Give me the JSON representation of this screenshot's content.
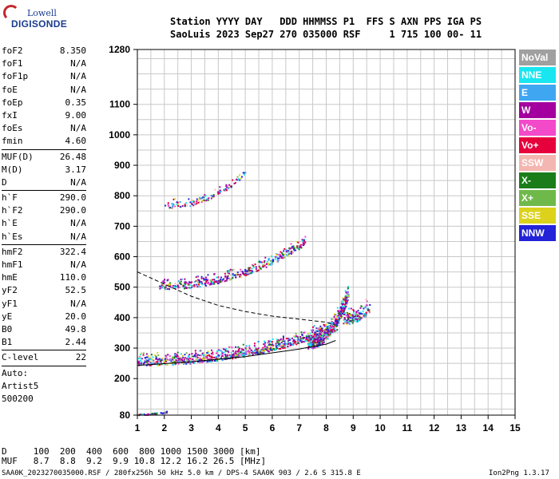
{
  "logo": {
    "line1": "Lowell",
    "line2": "DIGISONDE"
  },
  "header": {
    "labels": "Station YYYY DAY   DDD HHMMSS P1  FFS S AXN PPS IGA PS",
    "values": "SaoLuis 2023 Sep27 270 035000 RSF     1 715 100 00- 11"
  },
  "params": [
    {
      "k": "foF2",
      "v": "8.350"
    },
    {
      "k": "foF1",
      "v": "N/A"
    },
    {
      "k": "foF1p",
      "v": "N/A"
    },
    {
      "k": "foE",
      "v": "N/A"
    },
    {
      "k": "foEp",
      "v": "0.35"
    },
    {
      "k": "fxI",
      "v": "9.00"
    },
    {
      "k": "foEs",
      "v": "N/A"
    },
    {
      "k": "fmin",
      "v": "4.60"
    },
    {
      "sep": true
    },
    {
      "k": "MUF(D)",
      "v": "26.48"
    },
    {
      "k": "M(D)",
      "v": "3.17"
    },
    {
      "k": "D",
      "v": "N/A"
    },
    {
      "sep": true
    },
    {
      "k": "h`F",
      "v": "290.0"
    },
    {
      "k": "h`F2",
      "v": "290.0"
    },
    {
      "k": "h`E",
      "v": "N/A"
    },
    {
      "k": "h`Es",
      "v": "N/A"
    },
    {
      "sep": true
    },
    {
      "k": "hmF2",
      "v": "322.4"
    },
    {
      "k": "hmF1",
      "v": "N/A"
    },
    {
      "k": "hmE",
      "v": "110.0"
    },
    {
      "k": "yF2",
      "v": "52.5"
    },
    {
      "k": "yF1",
      "v": "N/A"
    },
    {
      "k": "yE",
      "v": "20.0"
    },
    {
      "k": "B0",
      "v": "49.8"
    },
    {
      "k": "B1",
      "v": "2.44"
    },
    {
      "sep": true
    },
    {
      "k": "C-level",
      "v": "22"
    },
    {
      "sep": true
    }
  ],
  "artist": {
    "l1": "Auto:",
    "l2": "Artist5",
    "l3": "500200"
  },
  "legend": [
    {
      "label": "NoVal",
      "color": "#a0a0a0"
    },
    {
      "label": "NNE",
      "color": "#19e6f0"
    },
    {
      "label": "E",
      "color": "#3fa6f2"
    },
    {
      "label": "W",
      "color": "#a3009f"
    },
    {
      "label": "Vo-",
      "color": "#f24ac8"
    },
    {
      "label": "Vo+",
      "color": "#e6003c"
    },
    {
      "label": "SSW",
      "color": "#f4b6b0"
    },
    {
      "label": "X-",
      "color": "#1a7d1a"
    },
    {
      "label": "X+",
      "color": "#6fb94a"
    },
    {
      "label": "SSE",
      "color": "#dcd21c"
    },
    {
      "label": "NNW",
      "color": "#2323d8"
    }
  ],
  "footer": {
    "row1": "D     100  200  400  600  800 1000 1500 3000 [km]",
    "row2": "MUF   8.7  8.8  9.2  9.9 10.8 12.2 16.2 26.5 [MHz]"
  },
  "footnote": "SAA0K_2023270035000.RSF / 280fx256h 50 kHz 5.0 km / DPS-4 SAA0K 903 / 2.6 S 315.8 E",
  "version": "Ion2Png 1.3.17",
  "chart_data": {
    "type": "scatter",
    "xlim": [
      1,
      15
    ],
    "ylim": [
      80,
      1280
    ],
    "x_ticks": [
      1,
      2,
      3,
      4,
      5,
      6,
      7,
      8,
      9,
      10,
      11,
      12,
      13,
      14,
      15
    ],
    "y_ticks": [
      80,
      200,
      300,
      400,
      500,
      600,
      700,
      800,
      900,
      1000,
      1100,
      1280
    ],
    "grid": true,
    "clusters": [
      {
        "name": "F2 O-trace",
        "fx": [
          1.0,
          8.4
        ],
        "h0": 245,
        "h1": 360,
        "spread": 45,
        "n": 900
      },
      {
        "name": "F2 spread",
        "fx": [
          7.3,
          8.8
        ],
        "h0": 300,
        "h1": 460,
        "spread": 60,
        "n": 450
      },
      {
        "name": "X-trace",
        "fx": [
          8.6,
          9.6
        ],
        "h0": 380,
        "h1": 420,
        "spread": 55,
        "n": 140
      },
      {
        "name": "2nd hop",
        "fx": [
          1.8,
          7.2
        ],
        "h0": 495,
        "h1": 640,
        "spread": 40,
        "n": 420
      },
      {
        "name": "3rd hop",
        "fx": [
          2.0,
          5.0
        ],
        "h0": 760,
        "h1": 870,
        "spread": 35,
        "n": 130
      },
      {
        "name": "low band",
        "fx": [
          1.0,
          2.1
        ],
        "h0": 82,
        "h1": 90,
        "spread": 6,
        "n": 50
      }
    ],
    "model_profile": {
      "lower": [
        [
          1.0,
          243
        ],
        [
          3,
          255
        ],
        [
          5,
          272
        ],
        [
          7,
          297
        ],
        [
          8.0,
          313
        ],
        [
          8.35,
          325
        ]
      ],
      "upper": [
        [
          1.0,
          550
        ],
        [
          2,
          510
        ],
        [
          3,
          470
        ],
        [
          4,
          440
        ],
        [
          5,
          420
        ],
        [
          6,
          405
        ],
        [
          7,
          395
        ],
        [
          8.0,
          385
        ],
        [
          8.35,
          375
        ]
      ]
    }
  }
}
